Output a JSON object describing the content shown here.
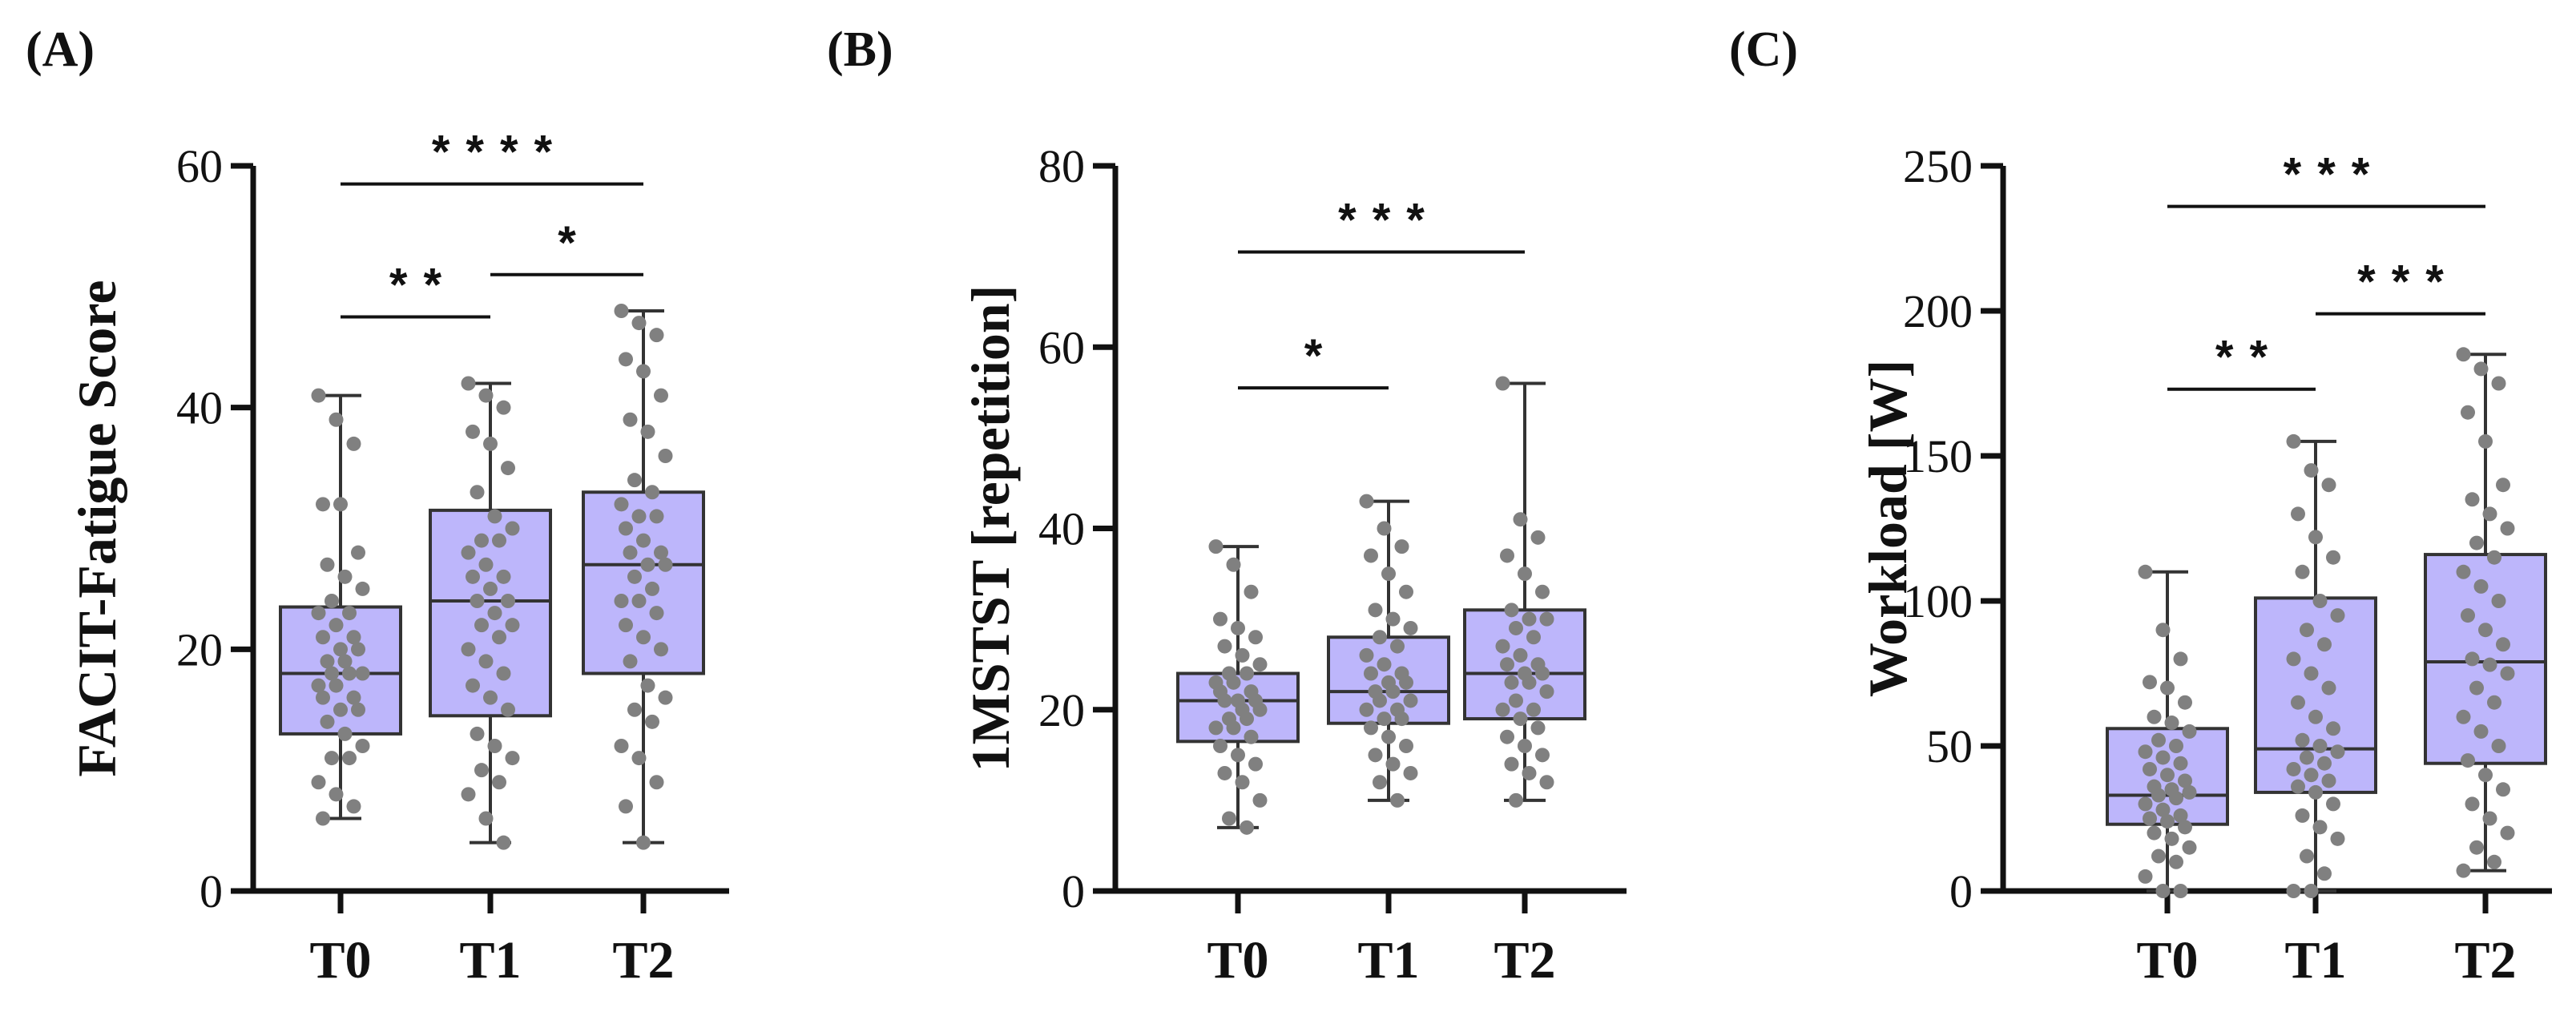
{
  "colors": {
    "box_fill": "#bdb6fb",
    "box_stroke": "#333333",
    "point": "#808080",
    "axis": "#111111"
  },
  "chart_data": [
    {
      "type": "box",
      "panel": "(A)",
      "ylabel": "FACIT-Fatigue Score",
      "ylim": [
        0,
        60
      ],
      "yticks": [
        0,
        20,
        40,
        60
      ],
      "categories": [
        "T0",
        "T1",
        "T2"
      ],
      "boxes": [
        {
          "name": "T0",
          "min": 6,
          "q1": 13,
          "median": 18,
          "q3": 23.5,
          "max": 41,
          "points": [
            41,
            39,
            37,
            32,
            32,
            28,
            27,
            26,
            25,
            24,
            23,
            23,
            22,
            21,
            21,
            20,
            20,
            19,
            19,
            18,
            18,
            18,
            17,
            17,
            16,
            16,
            15,
            15,
            14,
            13,
            12,
            11,
            11,
            9,
            8,
            7,
            6
          ]
        },
        {
          "name": "T1",
          "min": 4,
          "q1": 14.5,
          "median": 24,
          "q3": 31.5,
          "max": 42,
          "points": [
            42,
            41,
            40,
            38,
            37,
            35,
            33,
            31,
            30,
            29,
            29,
            28,
            27,
            26,
            26,
            25,
            24,
            24,
            23,
            22,
            22,
            21,
            20,
            19,
            18,
            17,
            16,
            15,
            13,
            12,
            11,
            10,
            9,
            8,
            6,
            4
          ]
        },
        {
          "name": "T2",
          "min": 4,
          "q1": 18,
          "median": 27,
          "q3": 33,
          "max": 48,
          "points": [
            48,
            47,
            46,
            44,
            43,
            41,
            39,
            38,
            36,
            34,
            33,
            32,
            31,
            31,
            30,
            29,
            28,
            28,
            27,
            27,
            26,
            25,
            24,
            24,
            23,
            22,
            21,
            20,
            19,
            17,
            16,
            15,
            14,
            12,
            11,
            9,
            7,
            4
          ]
        }
      ],
      "significance": [
        {
          "from": "T0",
          "to": "T2",
          "y": 58.5,
          "label": "****"
        },
        {
          "from": "T0",
          "to": "T1",
          "y": 47.5,
          "label": "**"
        },
        {
          "from": "T1",
          "to": "T2",
          "y": 51,
          "label": "*"
        }
      ]
    },
    {
      "type": "box",
      "panel": "(B)",
      "ylabel": "1MSTST [repetition]",
      "ylim": [
        0,
        80
      ],
      "yticks": [
        0,
        20,
        40,
        60,
        80
      ],
      "categories": [
        "T0",
        "T1",
        "T2"
      ],
      "boxes": [
        {
          "name": "T0",
          "min": 7,
          "q1": 16.5,
          "median": 21,
          "q3": 24,
          "max": 38,
          "points": [
            38,
            36,
            33,
            30,
            29,
            28,
            27,
            26,
            25,
            24,
            24,
            23,
            23,
            22,
            22,
            21,
            21,
            21,
            20,
            20,
            19,
            19,
            18,
            18,
            17,
            16,
            15,
            14,
            13,
            12,
            10,
            8,
            7
          ]
        },
        {
          "name": "T1",
          "min": 10,
          "q1": 18.5,
          "median": 22,
          "q3": 28,
          "max": 43,
          "points": [
            43,
            40,
            38,
            37,
            35,
            33,
            31,
            30,
            29,
            28,
            27,
            26,
            25,
            24,
            24,
            23,
            23,
            22,
            22,
            21,
            21,
            20,
            20,
            19,
            19,
            18,
            17,
            16,
            15,
            14,
            13,
            12,
            10
          ]
        },
        {
          "name": "T2",
          "min": 10,
          "q1": 19,
          "median": 24,
          "q3": 31,
          "max": 56,
          "points": [
            56,
            41,
            39,
            37,
            35,
            33,
            31,
            30,
            30,
            29,
            28,
            27,
            26,
            25,
            25,
            24,
            24,
            23,
            23,
            22,
            21,
            20,
            20,
            19,
            18,
            17,
            16,
            15,
            14,
            13,
            12,
            10
          ]
        }
      ],
      "significance": [
        {
          "from": "T0",
          "to": "T2",
          "y": 70.5,
          "label": "***"
        },
        {
          "from": "T0",
          "to": "T1",
          "y": 55.5,
          "label": "*"
        }
      ]
    },
    {
      "type": "box",
      "panel": "(C)",
      "ylabel": "Workload [W]",
      "ylim": [
        0,
        250
      ],
      "yticks": [
        0,
        50,
        100,
        150,
        200,
        250
      ],
      "categories": [
        "T0",
        "T1",
        "T2"
      ],
      "boxes": [
        {
          "name": "T0",
          "min": 0,
          "q1": 23,
          "median": 33,
          "q3": 56,
          "max": 110,
          "points": [
            110,
            90,
            80,
            72,
            70,
            65,
            60,
            58,
            55,
            52,
            50,
            48,
            46,
            44,
            42,
            40,
            38,
            36,
            35,
            34,
            33,
            32,
            30,
            28,
            26,
            25,
            24,
            22,
            20,
            18,
            15,
            12,
            10,
            5,
            0,
            0
          ]
        },
        {
          "name": "T1",
          "min": 0,
          "q1": 34,
          "median": 49,
          "q3": 101,
          "max": 155,
          "points": [
            155,
            145,
            140,
            130,
            122,
            115,
            110,
            100,
            95,
            90,
            85,
            80,
            75,
            70,
            65,
            60,
            56,
            52,
            50,
            48,
            46,
            44,
            42,
            40,
            38,
            36,
            34,
            30,
            26,
            22,
            18,
            12,
            6,
            0,
            0
          ]
        },
        {
          "name": "T2",
          "min": 7,
          "q1": 44,
          "median": 79,
          "q3": 116,
          "max": 185,
          "points": [
            185,
            180,
            175,
            165,
            155,
            140,
            135,
            130,
            125,
            120,
            115,
            110,
            105,
            100,
            95,
            90,
            85,
            80,
            78,
            75,
            70,
            65,
            60,
            55,
            50,
            45,
            40,
            35,
            30,
            25,
            20,
            15,
            10,
            7
          ]
        }
      ],
      "significance": [
        {
          "from": "T0",
          "to": "T2",
          "y": 236,
          "label": "***"
        },
        {
          "from": "T0",
          "to": "T1",
          "y": 173,
          "label": "**"
        },
        {
          "from": "T1",
          "to": "T2",
          "y": 199,
          "label": "***"
        }
      ]
    }
  ]
}
